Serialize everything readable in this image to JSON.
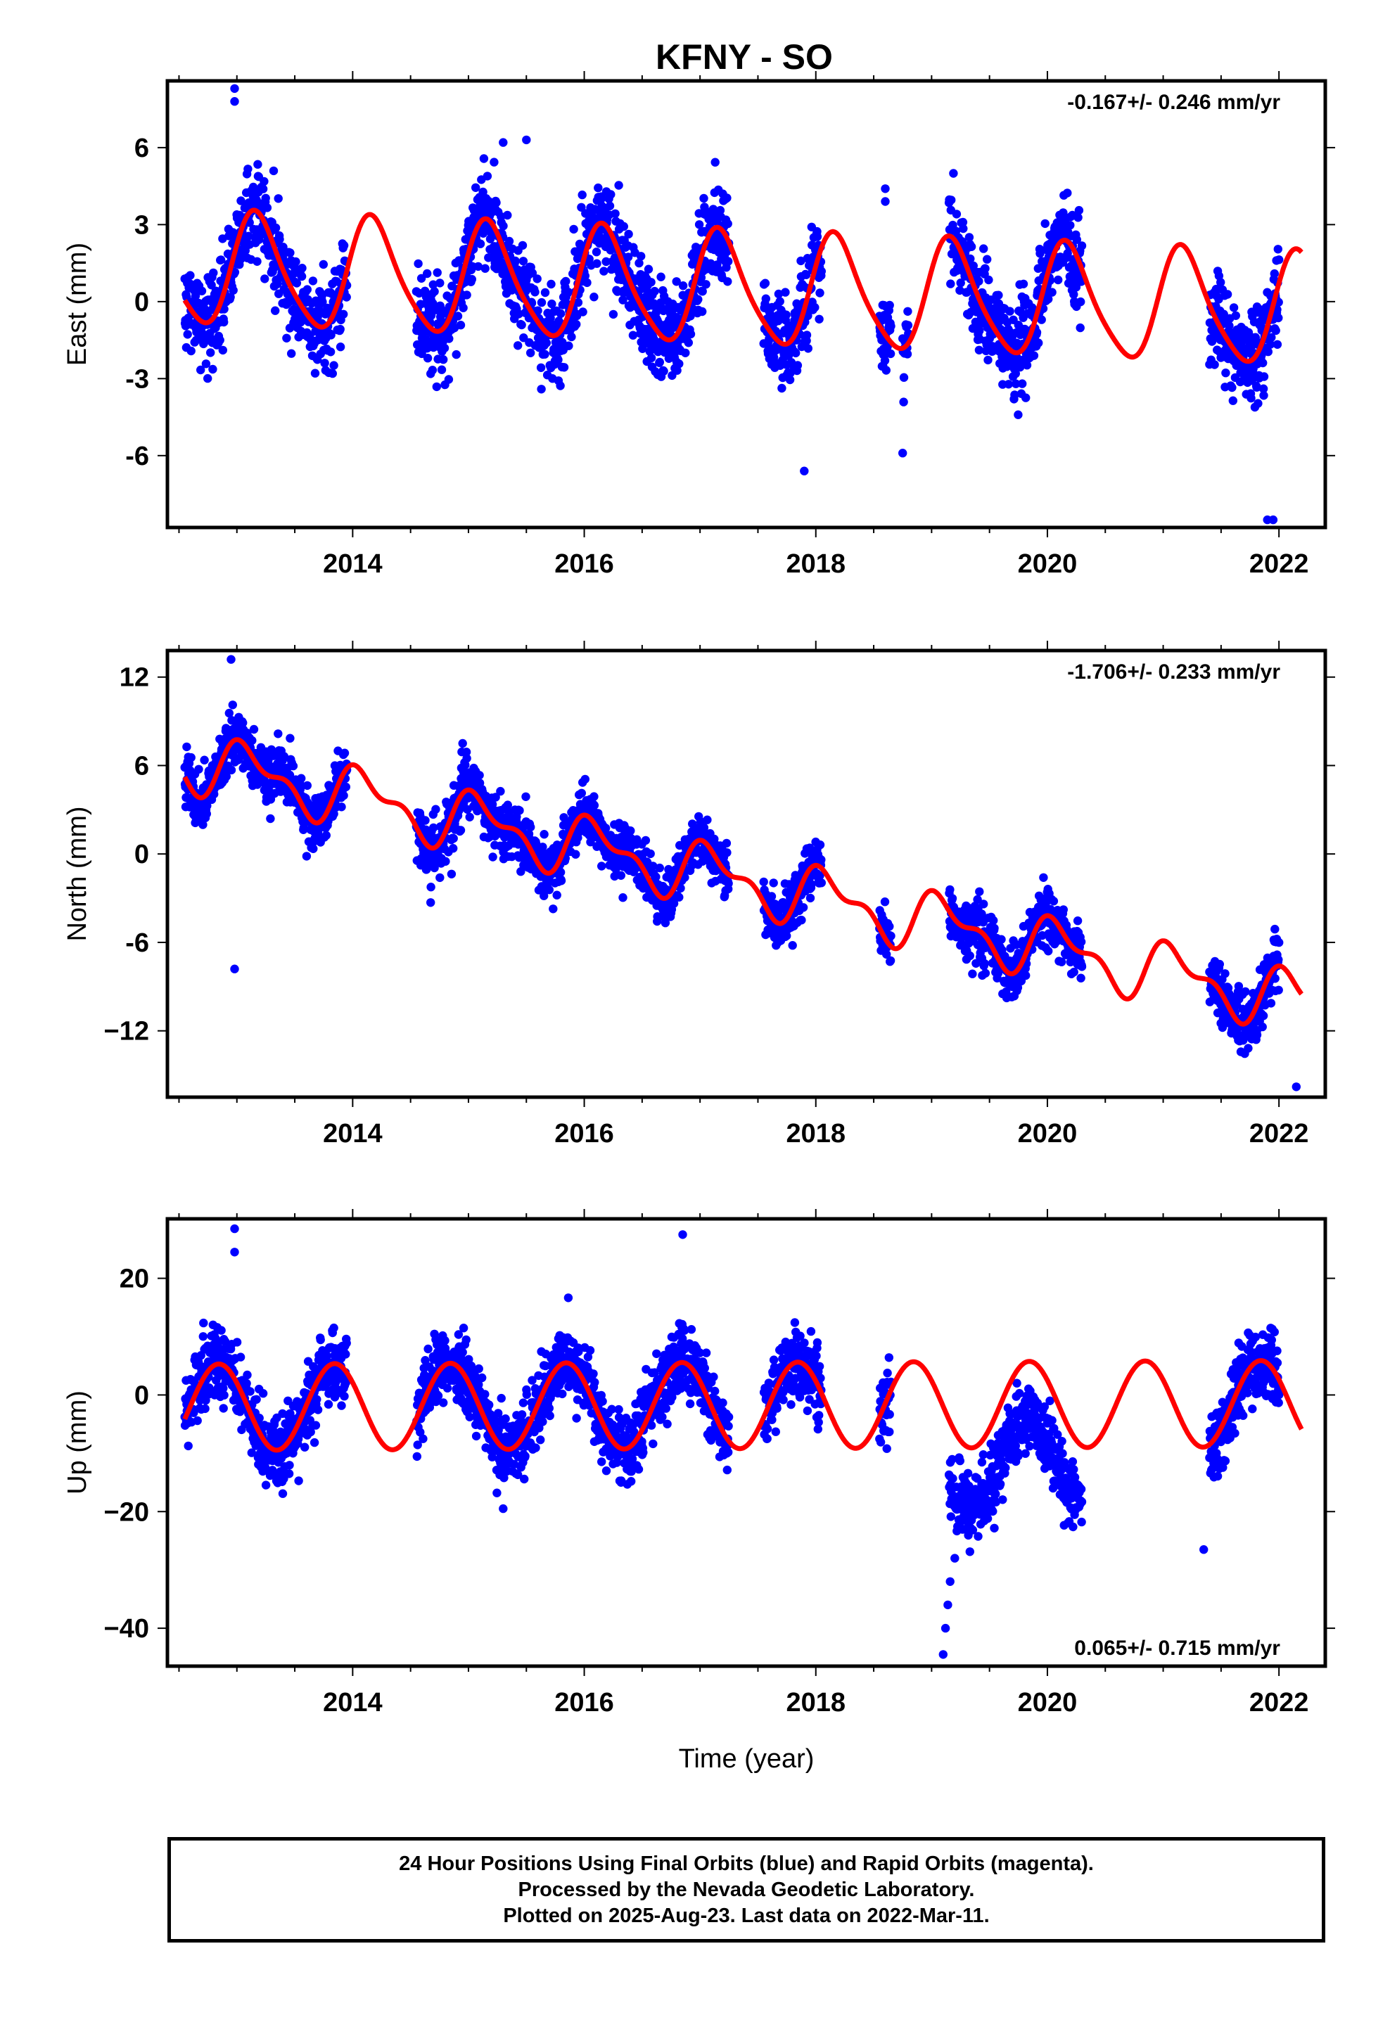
{
  "figure": {
    "title": "KFNY - SO",
    "x_label": "Time (year)",
    "colors": {
      "final_orbits": "#0000ff",
      "model_fit": "#ff0000",
      "frame": "#000000"
    }
  },
  "chart_data": [
    {
      "type": "scatter",
      "name": "east",
      "ylabel": "East (mm)",
      "velocity_label": "-0.167+/- 0.246 mm/yr",
      "xlim": [
        2012.4,
        2022.4
      ],
      "ylim": [
        -8.8,
        8.6
      ],
      "x_ticks": [
        2014,
        2016,
        2018,
        2020,
        2022
      ],
      "x_tick_labels": [
        "2014",
        "2016",
        "2018",
        "2020",
        "2022"
      ],
      "y_ticks": [
        -6,
        -3,
        0,
        3,
        6
      ],
      "y_tick_labels": [
        "-6",
        "-3",
        "0",
        "3",
        "6"
      ],
      "grid": false,
      "data_segments": [
        [
          2012.55,
          2013.95
        ],
        [
          2014.55,
          2017.25
        ],
        [
          2017.55,
          2018.05
        ],
        [
          2018.55,
          2018.65
        ],
        [
          2018.75,
          2018.8
        ],
        [
          2019.15,
          2020.3
        ],
        [
          2021.4,
          2022.0
        ]
      ],
      "fit_model": {
        "offset": 0.45,
        "rate": -0.167,
        "reference_year": 2017.4,
        "amplitude": 2.15,
        "phase": 0.45,
        "amplitude2": 0.35,
        "phase2": 0.3,
        "x_start": 2012.55,
        "x_end": 2022.2
      },
      "scatter_spread": 0.9,
      "outliers": [
        {
          "x": 2012.98,
          "y": 7.8
        },
        {
          "x": 2012.98,
          "y": 8.3
        },
        {
          "x": 2015.3,
          "y": 6.2
        },
        {
          "x": 2015.5,
          "y": 6.3
        },
        {
          "x": 2017.9,
          "y": -6.6
        },
        {
          "x": 2018.75,
          "y": -5.9
        },
        {
          "x": 2021.9,
          "y": -8.5
        },
        {
          "x": 2021.95,
          "y": -8.5
        },
        {
          "x": 2018.6,
          "y": 4.4
        },
        {
          "x": 2018.6,
          "y": 3.9
        }
      ]
    },
    {
      "type": "scatter",
      "name": "north",
      "ylabel": "North (mm)",
      "velocity_label": "-1.706+/- 0.233 mm/yr",
      "xlim": [
        2012.4,
        2022.4
      ],
      "ylim": [
        -16.5,
        13.8
      ],
      "x_ticks": [
        2014,
        2016,
        2018,
        2020,
        2022
      ],
      "x_tick_labels": [
        "2014",
        "2016",
        "2018",
        "2020",
        "2022"
      ],
      "y_ticks": [
        -12,
        -6,
        0,
        6,
        12
      ],
      "y_tick_labels": [
        "−12",
        "-6",
        "0",
        "6",
        "12"
      ],
      "grid": false,
      "data_segments": [
        [
          2012.55,
          2013.95
        ],
        [
          2014.55,
          2017.25
        ],
        [
          2017.55,
          2018.05
        ],
        [
          2018.55,
          2018.65
        ],
        [
          2019.15,
          2020.3
        ],
        [
          2021.4,
          2022.0
        ]
      ],
      "fit_model": {
        "offset": -1.9,
        "rate": -1.706,
        "reference_year": 2017.4,
        "amplitude": 1.7,
        "phase": 0.9,
        "amplitude2": 0.9,
        "phase2": 2.0,
        "x_start": 2012.55,
        "x_end": 2022.2
      },
      "scatter_spread": 0.95,
      "outliers": [
        {
          "x": 2012.95,
          "y": 13.2
        },
        {
          "x": 2012.98,
          "y": -7.8
        },
        {
          "x": 2014.95,
          "y": 7.5
        },
        {
          "x": 2022.15,
          "y": -15.8
        }
      ]
    },
    {
      "type": "scatter",
      "name": "up",
      "ylabel": "Up (mm)",
      "velocity_label": "0.065+/- 0.715 mm/yr",
      "xlim": [
        2012.4,
        2022.4
      ],
      "ylim": [
        -46.5,
        30.2
      ],
      "x_ticks": [
        2014,
        2016,
        2018,
        2020,
        2022
      ],
      "x_tick_labels": [
        "2014",
        "2016",
        "2018",
        "2020",
        "2022"
      ],
      "y_ticks": [
        -40,
        -20,
        0,
        20
      ],
      "y_tick_labels": [
        "−40",
        "−20",
        "0",
        "20"
      ],
      "grid": false,
      "data_segments": [
        [
          2012.55,
          2013.95
        ],
        [
          2014.55,
          2017.25
        ],
        [
          2017.55,
          2018.05
        ],
        [
          2018.55,
          2018.65
        ],
        [
          2019.15,
          2020.3
        ],
        [
          2021.4,
          2022.0
        ]
      ],
      "fit_model": {
        "offset": -1.8,
        "rate": 0.065,
        "reference_year": 2017.4,
        "amplitude": 7.4,
        "phase": 2.55,
        "amplitude2": 0,
        "phase2": 0,
        "x_start": 2012.55,
        "x_end": 2022.2
      },
      "scatter_spread": 3.0,
      "anomaly": {
        "range": [
          2019.1,
          2020.3
        ],
        "shift": -10
      },
      "outliers": [
        {
          "x": 2012.98,
          "y": 28.5
        },
        {
          "x": 2012.98,
          "y": 24.5
        },
        {
          "x": 2016.85,
          "y": 27.5
        },
        {
          "x": 2019.1,
          "y": -44.5
        },
        {
          "x": 2019.12,
          "y": -40
        },
        {
          "x": 2019.14,
          "y": -36
        },
        {
          "x": 2019.16,
          "y": -32
        },
        {
          "x": 2019.2,
          "y": -28
        },
        {
          "x": 2021.35,
          "y": -26.5
        },
        {
          "x": 2015.3,
          "y": -19.5
        }
      ]
    }
  ],
  "footer": {
    "lines": [
      "24 Hour Positions Using Final Orbits (blue) and Rapid Orbits (magenta).",
      "Processed by the Nevada Geodetic Laboratory.",
      "Plotted on 2025-Aug-23. Last data on 2022-Mar-11."
    ]
  }
}
